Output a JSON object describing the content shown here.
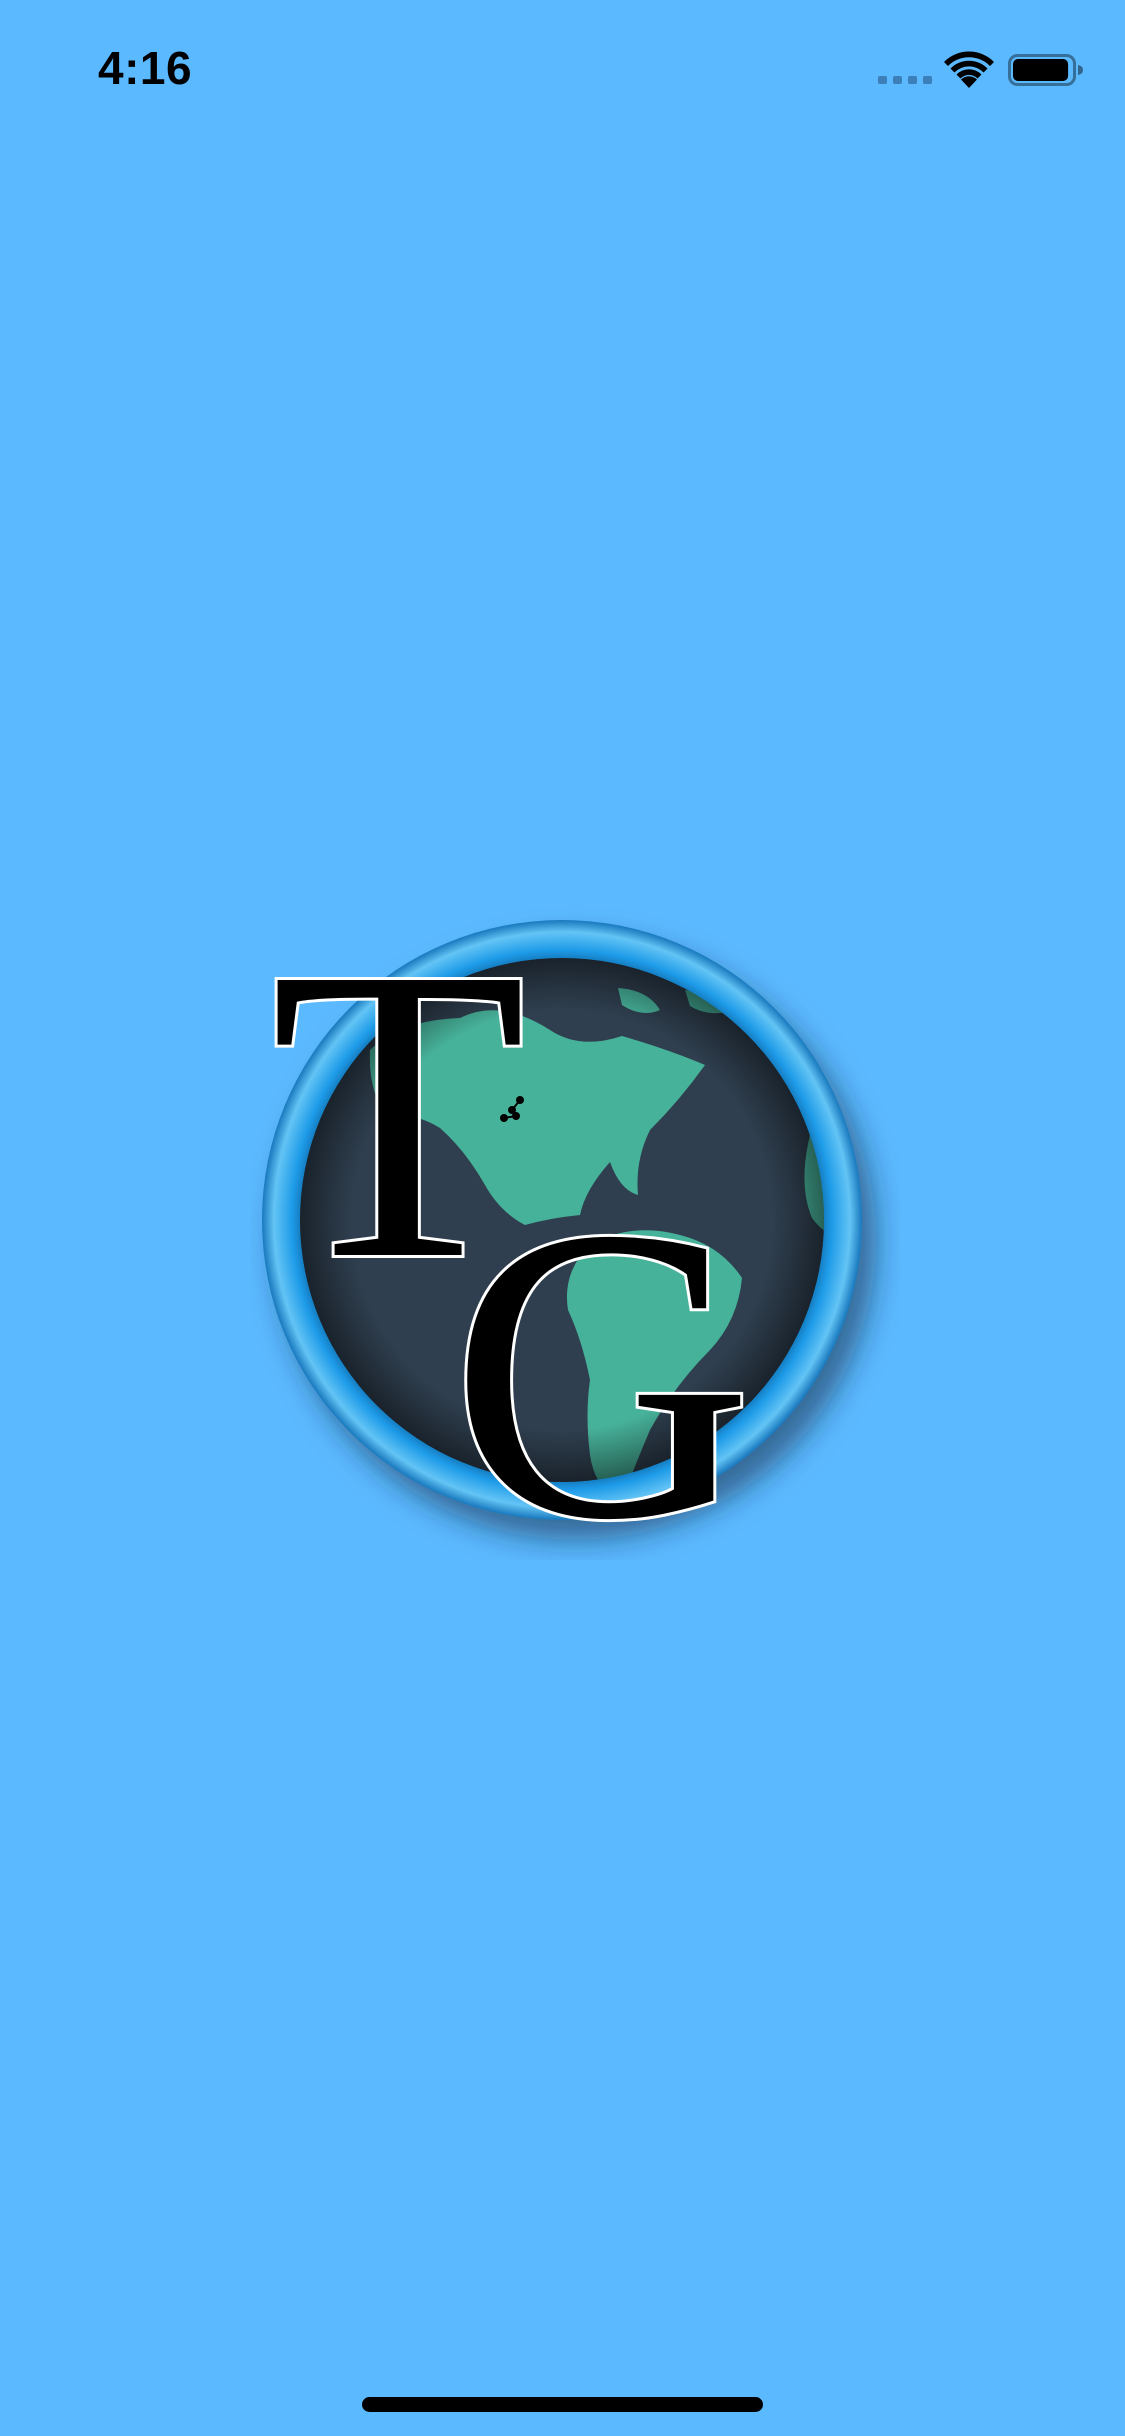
{
  "screen": {
    "background_color": "#5BB9FF"
  },
  "status_bar": {
    "time": "4:16",
    "foreground_color": "#000000",
    "signal_dots_color": "#3C7FB8",
    "icons": {
      "signal": "cellular-signal-icon",
      "wifi": "wifi-icon",
      "battery": "battery-icon"
    },
    "battery_level": 0.95
  },
  "logo": {
    "icon": "tg-globe-logo",
    "letters": [
      "T",
      "G"
    ],
    "ring_color": "#1E9BE8",
    "globe_color": "#2F3F4F",
    "land_color": "#47B29A",
    "letter_color": "#000000",
    "letter_outline_color": "#FFFFFF"
  },
  "home_indicator": {
    "color": "#000000"
  }
}
